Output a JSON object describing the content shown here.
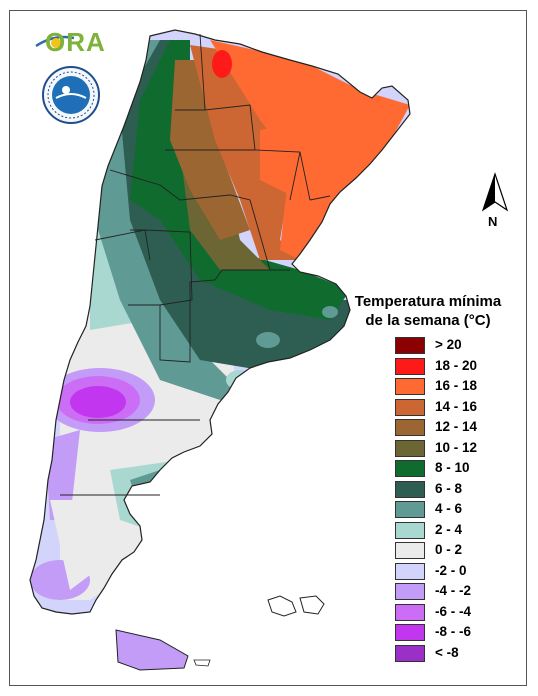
{
  "logo": {
    "text": "ORA"
  },
  "seal": {
    "icon": "argentina-meteorological-service-seal-icon"
  },
  "north_arrow": {
    "label": "N"
  },
  "legend": {
    "title_line1": "Temperatura mínima",
    "title_line2": "de la semana (°C)",
    "items": [
      {
        "label": "> 20",
        "color": "#8b0000"
      },
      {
        "label": "18 - 20",
        "color": "#ff1a1a"
      },
      {
        "label": "16 - 18",
        "color": "#ff6a33"
      },
      {
        "label": "14 - 16",
        "color": "#cc6633"
      },
      {
        "label": "12 - 14",
        "color": "#9c6633"
      },
      {
        "label": "10 - 12",
        "color": "#6b6633"
      },
      {
        "label": "8 - 10",
        "color": "#0f6b2e"
      },
      {
        "label": "6 - 8",
        "color": "#2e5e52"
      },
      {
        "label": "4 - 6",
        "color": "#5f9a94"
      },
      {
        "label": "2 - 4",
        "color": "#a9d8d0"
      },
      {
        "label": "0 - 2",
        "color": "#ebebeb"
      },
      {
        "label": "-2 - 0",
        "color": "#d2d4fb"
      },
      {
        "label": "-4 - -2",
        "color": "#c39cf7"
      },
      {
        "label": "-6 - -4",
        "color": "#cc6ef5"
      },
      {
        "label": "-8 - -6",
        "color": "#c236f0"
      },
      {
        "label": "< -8",
        "color": "#9a30c8"
      }
    ]
  }
}
